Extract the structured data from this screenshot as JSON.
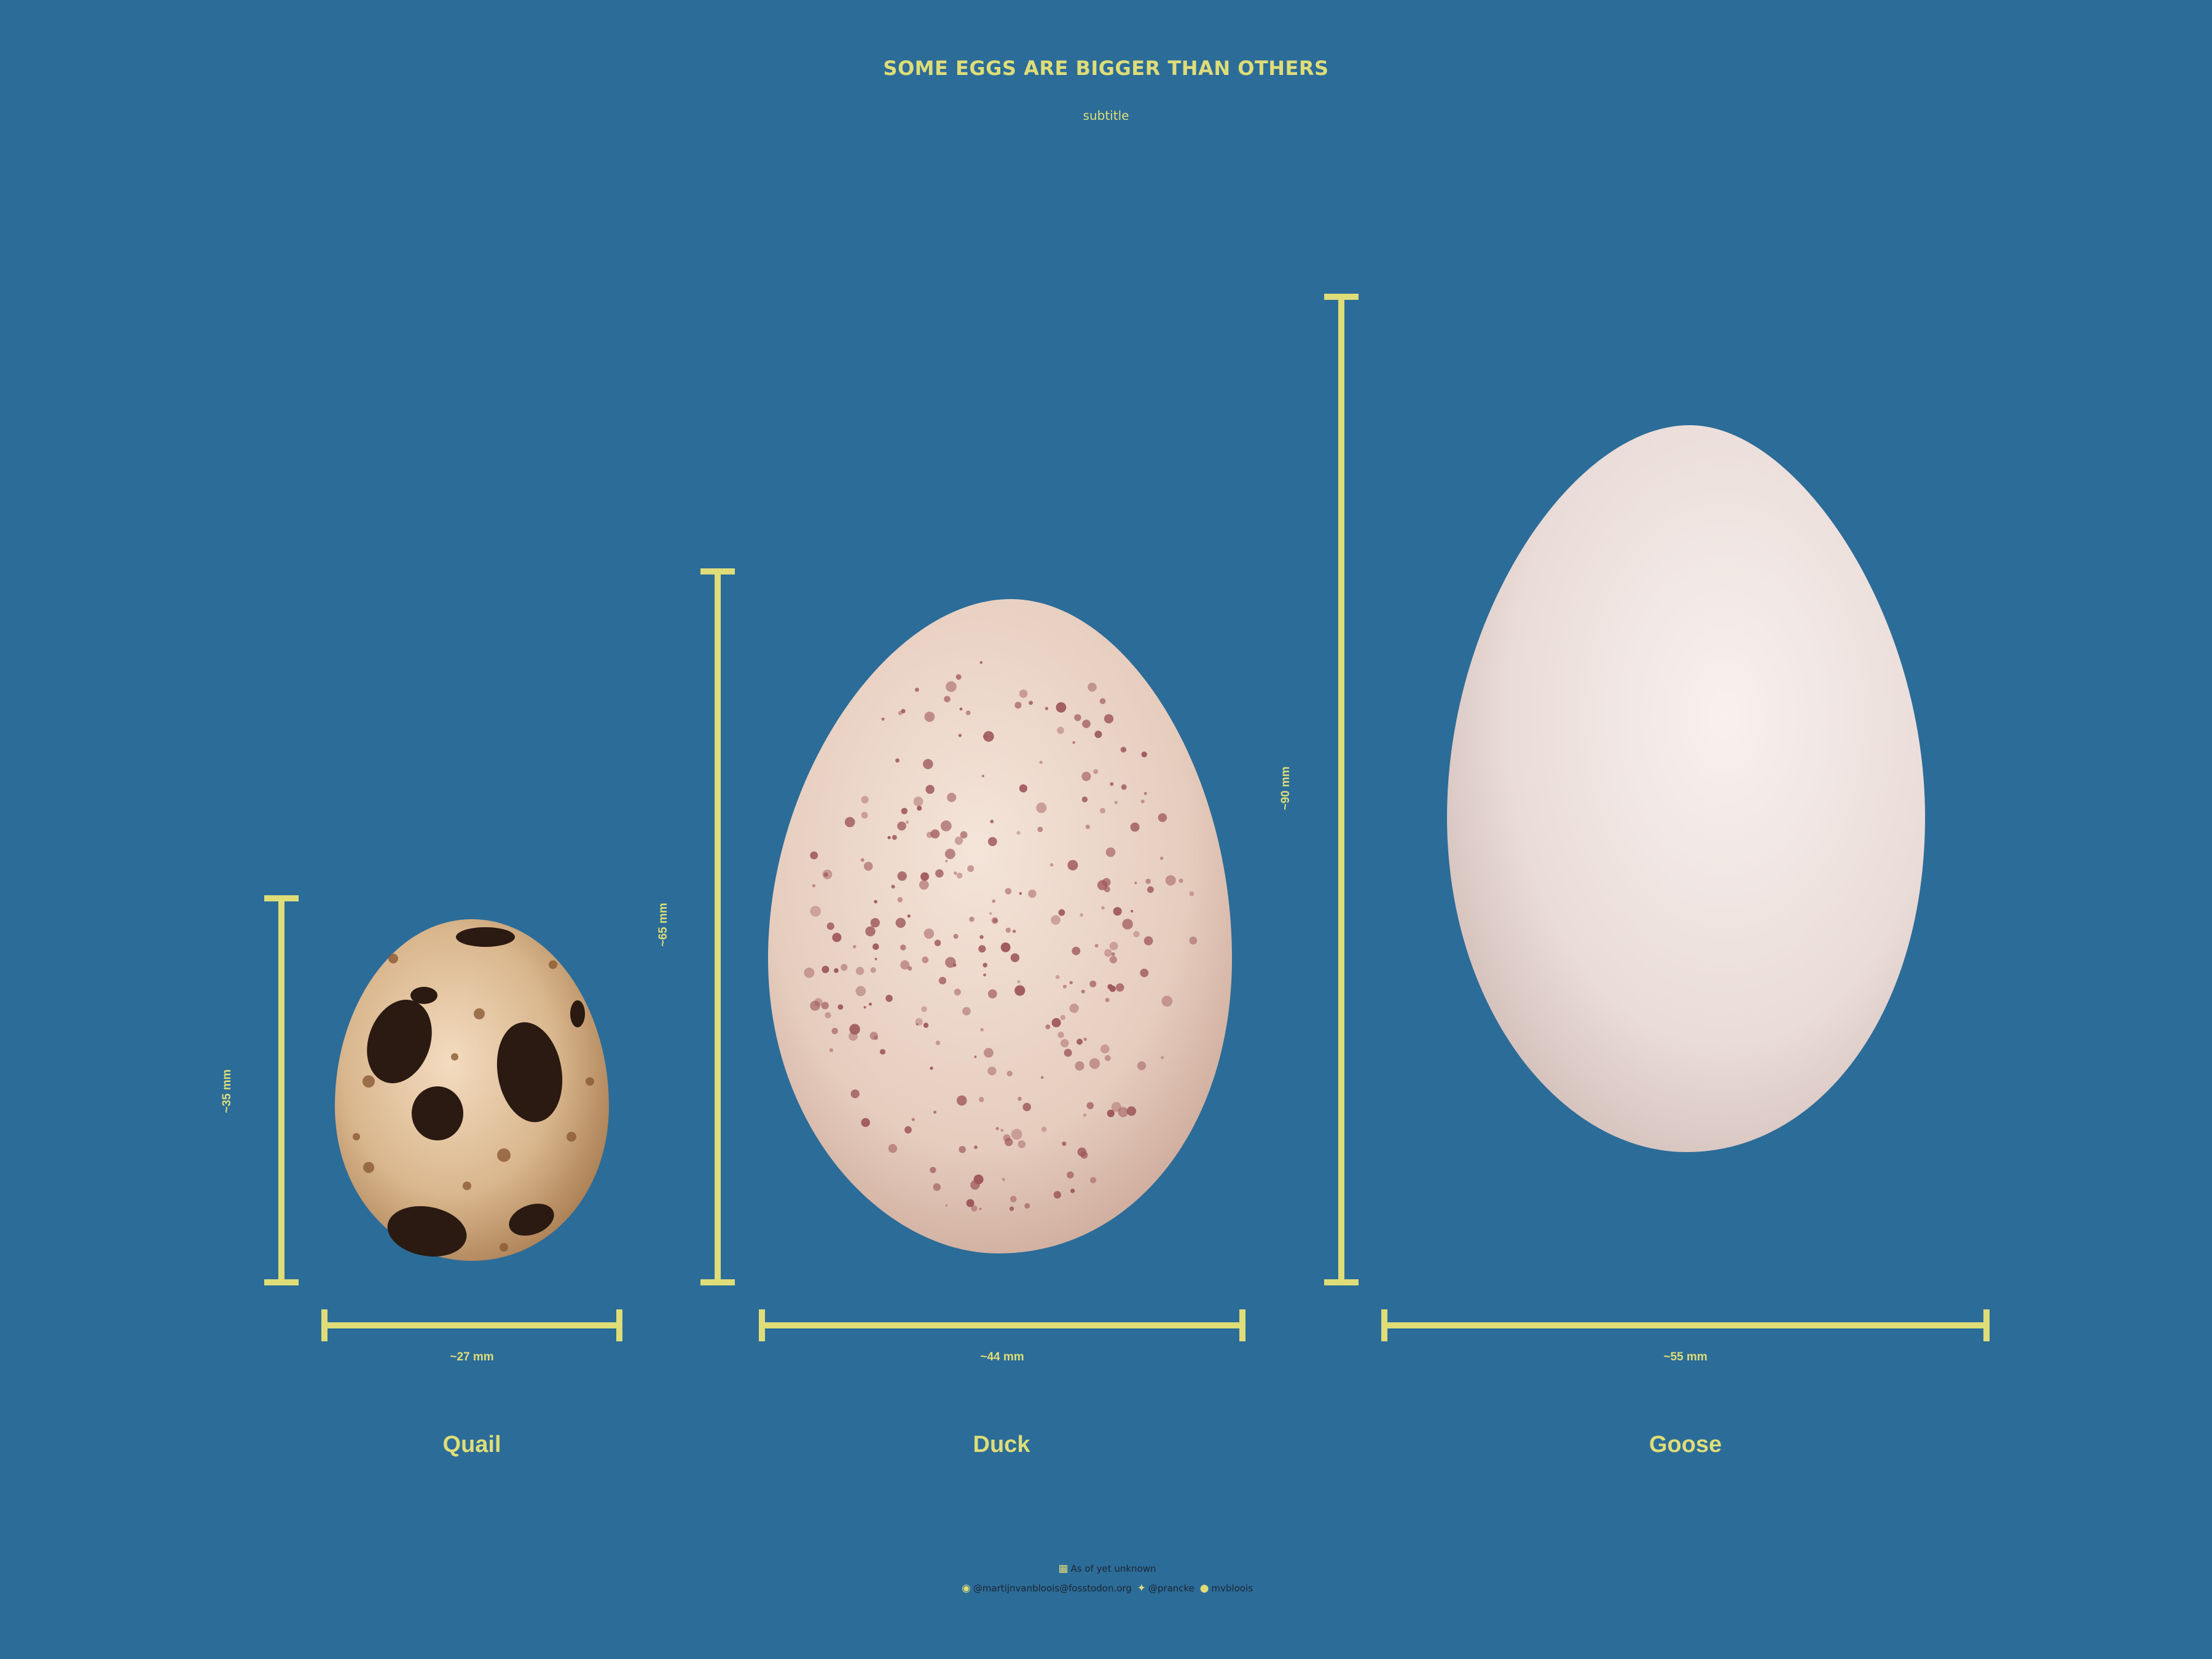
{
  "header": {
    "title": "SOME EGGS ARE BIGGER THAN OTHERS",
    "subtitle": "subtitle"
  },
  "colors": {
    "background": "#2c6c98",
    "accent": "#dedd78",
    "footer_text": "#1a2633"
  },
  "eggs": [
    {
      "name": "Quail",
      "width_label": "~27 mm",
      "height_label": "~35 mm",
      "width_mm": 27,
      "height_mm": 35,
      "appearance": "speckled-quail"
    },
    {
      "name": "Duck",
      "width_label": "~44 mm",
      "height_label": "~65 mm",
      "width_mm": 44,
      "height_mm": 65,
      "appearance": "speckled-duck"
    },
    {
      "name": "Goose",
      "width_label": "~55 mm",
      "height_label": "~90 mm",
      "width_mm": 55,
      "height_mm": 90,
      "appearance": "plain-white"
    }
  ],
  "footer": {
    "source_icon": "table-icon",
    "source_text": "As of yet unknown",
    "mastodon_icon": "mastodon-icon",
    "mastodon_handle": "@martijnvanbloois@fosstodon.org",
    "twitter_icon": "twitter-icon",
    "twitter_handle": "@prancke",
    "github_icon": "github-icon",
    "github_handle": "mvbloois"
  }
}
